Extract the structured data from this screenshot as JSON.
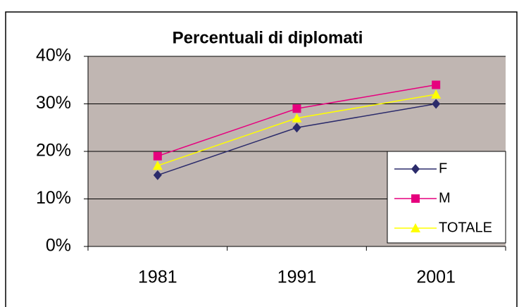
{
  "chart_data": {
    "type": "line",
    "title": "Percentuali di diplomati",
    "categories": [
      "1981",
      "1991",
      "2001"
    ],
    "series": [
      {
        "name": "F",
        "color": "#2b2b6b",
        "marker": "diamond",
        "values": [
          15,
          25,
          30
        ]
      },
      {
        "name": "M",
        "color": "#e6007e",
        "marker": "square",
        "values": [
          19,
          29,
          34
        ]
      },
      {
        "name": "TOTALE",
        "color": "#ffff00",
        "marker": "triangle",
        "values": [
          17,
          27,
          32
        ]
      }
    ],
    "ylim": [
      0,
      40
    ],
    "yticks": [
      {
        "value": 0,
        "label": "0%"
      },
      {
        "value": 10,
        "label": "10%"
      },
      {
        "value": 20,
        "label": "20%"
      },
      {
        "value": 30,
        "label": "30%"
      },
      {
        "value": 40,
        "label": "40%"
      }
    ],
    "grid": true,
    "legend": "lower right",
    "plot_background": "#c0b6b2"
  }
}
